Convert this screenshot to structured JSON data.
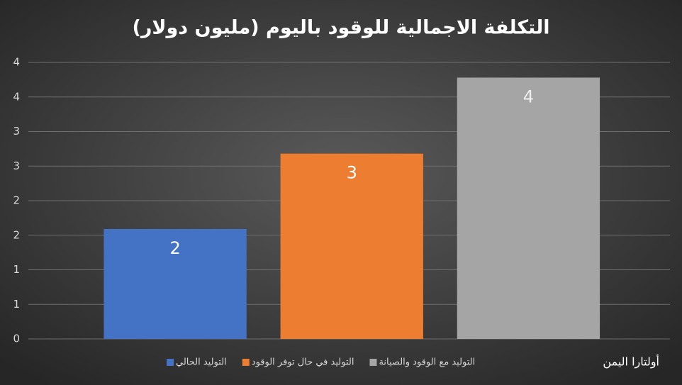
{
  "chart_data": {
    "type": "bar",
    "title": "التكلفة الاجمالية للوقود باليوم  (مليون دولار)",
    "categories": [
      "التوليد الحالي",
      "التوليد في حال توفر الوقود",
      "التوليد مع الوقود والصيانة"
    ],
    "values": [
      1.59,
      2.68,
      3.78
    ],
    "value_labels": [
      "2",
      "3",
      "4"
    ],
    "colors": [
      "#4472c4",
      "#ed7d31",
      "#a5a5a5"
    ],
    "ylim": [
      0,
      4
    ],
    "yticks": [
      0,
      {
        "value": 0.5,
        "label": "1"
      },
      1,
      {
        "value": 1.5,
        "label": "2"
      },
      2,
      {
        "value": 2.5,
        "label": "3"
      },
      3,
      {
        "value": 3.5,
        "label": "4"
      },
      4
    ],
    "grid": true,
    "annotation": "أولتارا اليمن"
  }
}
